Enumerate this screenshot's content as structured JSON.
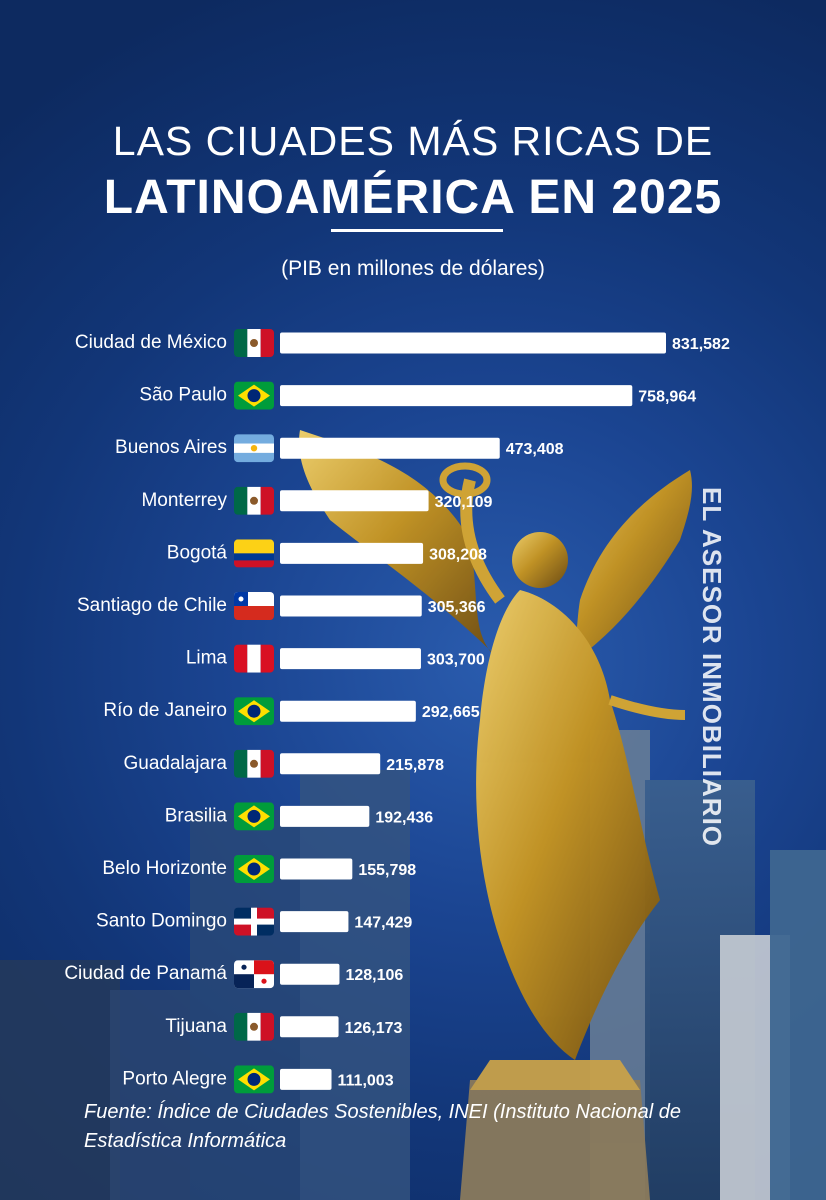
{
  "title": {
    "line1": "LAS CIUADES MÁS RICAS DE",
    "line2": "LATINOAMÉRICA EN 2025"
  },
  "subtitle": "(PIB en millones de dólares)",
  "source": "Fuente: Índice de Ciudades Sostenibles, INEI (Instituto Nacional de Estadística Informática",
  "watermark": "EL ASESOR INMOBILIARIO",
  "colors": {
    "bar": "#ffffff",
    "text": "#ffffff",
    "background": "#1b4592"
  },
  "chart_data": {
    "type": "bar",
    "orientation": "horizontal",
    "title": "LAS CIUADES MÁS RICAS DE LATINOAMÉRICA EN 2025",
    "subtitle": "(PIB en millones de dólares)",
    "categories": [
      "Ciudad de México",
      "São Paulo",
      "Buenos Aires",
      "Monterrey",
      "Bogotá",
      "Santiago de Chile",
      "Lima",
      "Río de Janeiro",
      "Guadalajara",
      "Brasilia",
      "Belo Horizonte",
      "Santo Domingo",
      "Ciudad de Panamá",
      "Tijuana",
      "Porto Alegre"
    ],
    "values": [
      831582,
      758964,
      473408,
      320109,
      308208,
      305366,
      303700,
      292665,
      215878,
      192436,
      155798,
      147429,
      128106,
      126173,
      111003
    ],
    "value_labels": [
      "831,582",
      "758,964",
      "473,408",
      "320,109",
      "308,208",
      "305,366",
      "303,700",
      "292,665",
      "215,878",
      "192,436",
      "155,798",
      "147,429",
      "128,106",
      "126,173",
      "111,003"
    ],
    "flags": [
      "mexico",
      "brazil",
      "argentina",
      "mexico",
      "colombia",
      "chile",
      "peru",
      "brazil",
      "mexico",
      "brazil",
      "brazil",
      "dominican-republic",
      "panama",
      "mexico",
      "brazil"
    ],
    "xlim": [
      0,
      831582
    ],
    "grid": false,
    "legend": "none"
  }
}
